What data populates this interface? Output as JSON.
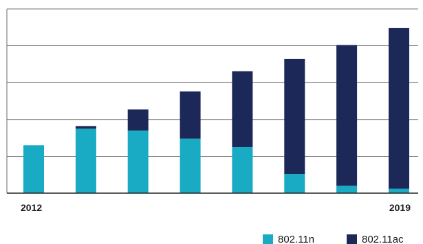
{
  "chart_data": {
    "type": "bar",
    "stacked": true,
    "title": "",
    "xlabel": "",
    "ylabel": "",
    "categories": [
      "2012",
      "",
      "",
      "",
      "",
      "",
      "",
      "2019"
    ],
    "series": [
      {
        "name": "802.11n",
        "color": "#1aabc4",
        "values": [
          1.3,
          1.75,
          1.7,
          1.48,
          1.25,
          0.52,
          0.2,
          0.12
        ]
      },
      {
        "name": "802.11ac",
        "color": "#1c2857",
        "values": [
          0.0,
          0.07,
          0.57,
          1.28,
          2.06,
          3.12,
          3.82,
          4.36
        ]
      }
    ],
    "ylim": [
      0,
      5
    ],
    "y_ticks": [
      0,
      1,
      2,
      3,
      4,
      5
    ],
    "y_tick_labels_shown": false,
    "grid": true,
    "legend": "bottom-right"
  },
  "axis": {
    "x_start_label": "2012",
    "x_end_label": "2019"
  },
  "legend": {
    "items": [
      {
        "label": "802.11n",
        "color": "#1aabc4"
      },
      {
        "label": "802.11ac",
        "color": "#1c2857"
      }
    ]
  }
}
